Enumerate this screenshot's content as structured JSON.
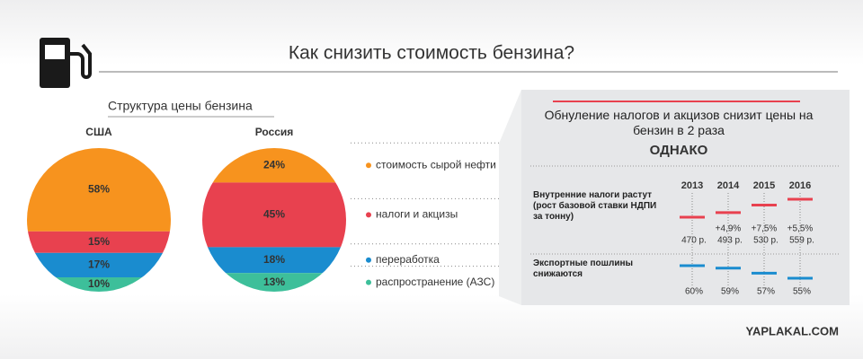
{
  "header": {
    "title": "Как снизить стоимость бензина?"
  },
  "watermark": "YAPLAKAL.COM",
  "chart_data": [
    {
      "type": "stacked-circle",
      "title": "Структура цены бензина",
      "categories": [
        "стоимость сырой нефти",
        "налоги и акцизы",
        "переработка",
        "распространение (АЗС)"
      ],
      "colors": [
        "#f7931e",
        "#e8414f",
        "#1a8ccf",
        "#3dbf9a"
      ],
      "series": [
        {
          "name": "США",
          "values": [
            58,
            15,
            17,
            10
          ],
          "value_labels": [
            "58%",
            "15%",
            "17%",
            "10%"
          ]
        },
        {
          "name": "Россия",
          "values": [
            24,
            45,
            18,
            13
          ],
          "value_labels": [
            "24%",
            "45%",
            "18%",
            "13%"
          ]
        }
      ]
    },
    {
      "type": "marker",
      "title": "Обнуление налогов и акцизов снизит цены на бензин в 2 раза",
      "subtitle": "ОДНАКО",
      "categories": [
        "2013",
        "2014",
        "2015",
        "2016"
      ],
      "series": [
        {
          "name": "Внутренние налоги растут (рост базовой ставки НДПИ за тонну)",
          "color": "#e8414f",
          "values": [
            470,
            493,
            530,
            559
          ],
          "value_labels": [
            "470 р.",
            "493 р.",
            "530 р.",
            "559 р."
          ],
          "change_labels": [
            null,
            "+4,9%",
            "+7,5%",
            "+5,5%"
          ]
        },
        {
          "name": "Экспортные пошлины снижаются",
          "color": "#1a8ccf",
          "values": [
            60,
            59,
            57,
            55
          ],
          "value_labels": [
            "60%",
            "59%",
            "57%",
            "55%"
          ]
        }
      ]
    }
  ]
}
